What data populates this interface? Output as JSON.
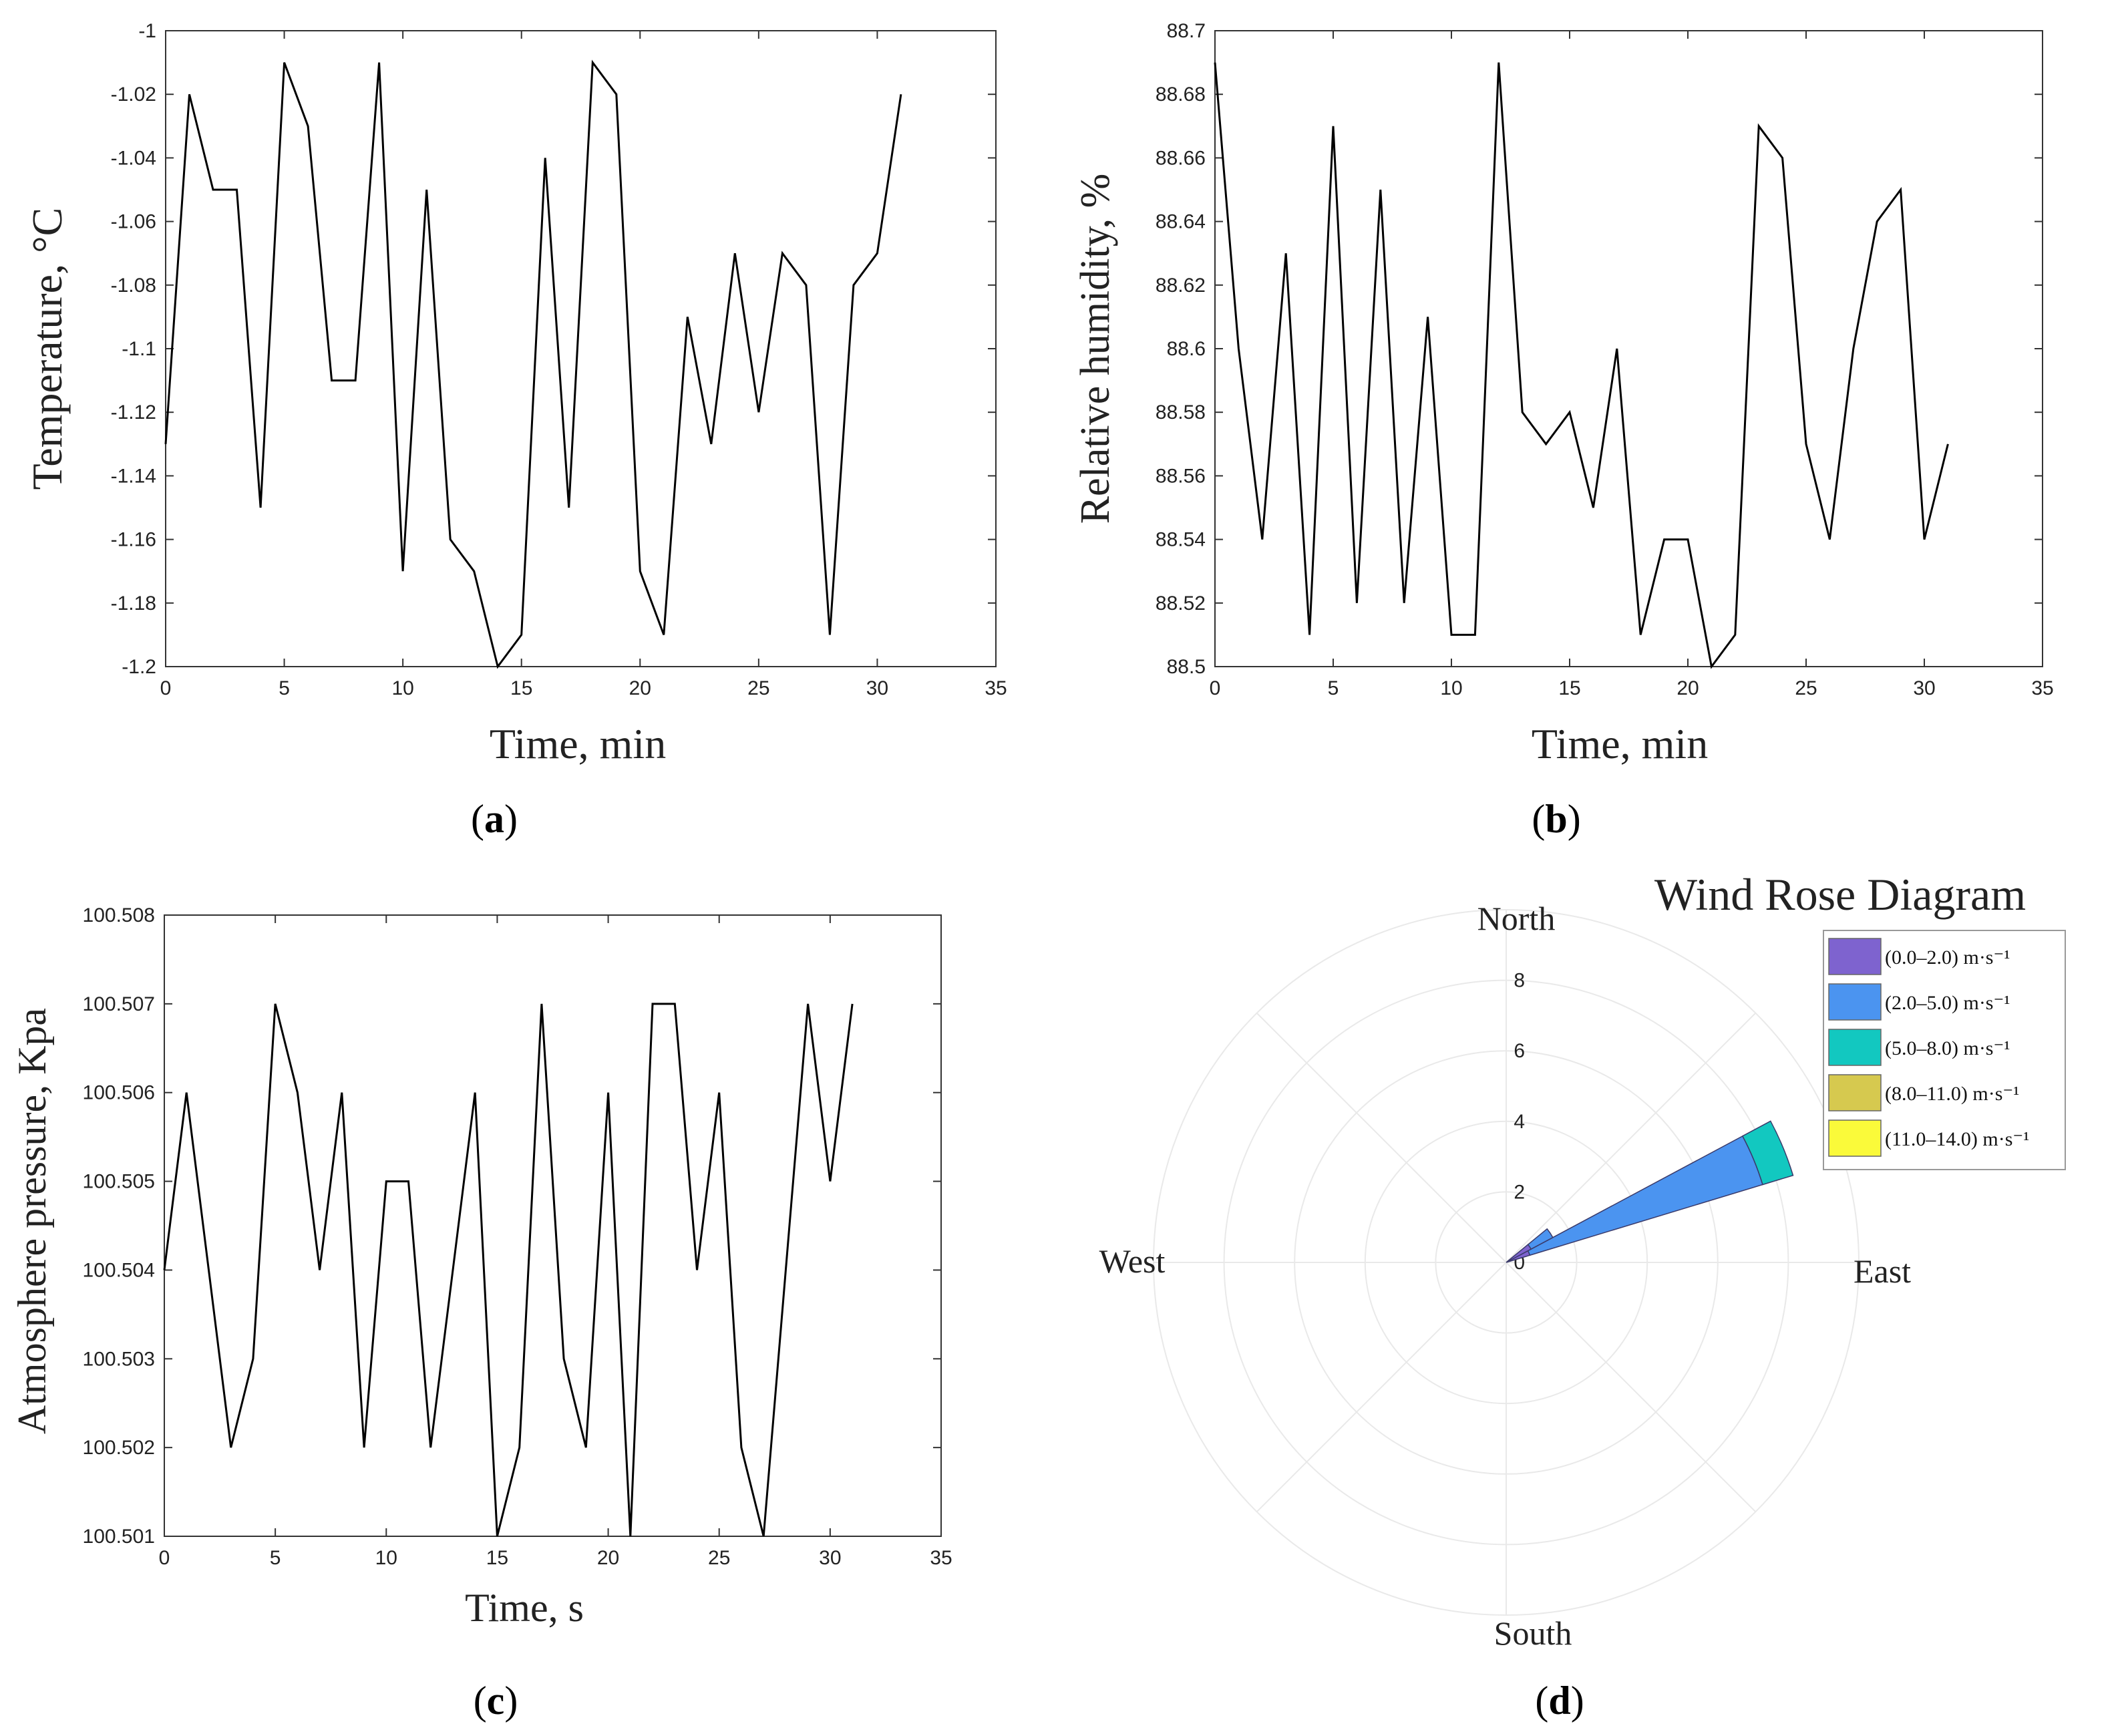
{
  "chart_data": [
    {
      "id": "a",
      "type": "line",
      "panel_label": [
        "(",
        "a",
        ")"
      ],
      "xlabel": "Time, min",
      "ylabel": "Temperature, °C",
      "xlim": [
        0,
        35
      ],
      "ylim": [
        -1.2,
        -1
      ],
      "x_ticks": [
        0,
        5,
        10,
        15,
        20,
        25,
        30,
        35
      ],
      "y_ticks": [
        -1.2,
        -1.18,
        -1.16,
        -1.14,
        -1.12,
        -1.1,
        -1.08,
        -1.06,
        -1.04,
        -1.02,
        -1
      ],
      "y_tick_labels": [
        "-1.2",
        "-1.18",
        "-1.16",
        "-1.14",
        "-1.12",
        "-1.1",
        "-1.08",
        "-1.06",
        "-1.04",
        "-1.02",
        "-1"
      ],
      "x": [
        0,
        1,
        2,
        3,
        4,
        5,
        6,
        7,
        8,
        9,
        10,
        11,
        12,
        13,
        14,
        15,
        16,
        17,
        18,
        19,
        20,
        21,
        22,
        23,
        24,
        25,
        26,
        27,
        28,
        29,
        30,
        31
      ],
      "y": [
        -1.13,
        -1.02,
        -1.05,
        -1.05,
        -1.15,
        -1.01,
        -1.03,
        -1.11,
        -1.11,
        -1.01,
        -1.17,
        -1.05,
        -1.16,
        -1.17,
        -1.2,
        -1.19,
        -1.04,
        -1.15,
        -1.01,
        -1.02,
        -1.17,
        -1.19,
        -1.09,
        -1.13,
        -1.07,
        -1.12,
        -1.07,
        -1.08,
        -1.19,
        -1.08,
        -1.07,
        -1.02
      ],
      "color": "#000000"
    },
    {
      "id": "b",
      "type": "line",
      "panel_label": [
        "(",
        "b",
        ")"
      ],
      "xlabel": "Time, min",
      "ylabel": "Relative humidity, %",
      "xlim": [
        0,
        35
      ],
      "ylim": [
        88.5,
        88.7
      ],
      "x_ticks": [
        0,
        5,
        10,
        15,
        20,
        25,
        30,
        35
      ],
      "y_ticks": [
        88.5,
        88.52,
        88.54,
        88.56,
        88.58,
        88.6,
        88.62,
        88.64,
        88.66,
        88.68,
        88.7
      ],
      "y_tick_labels": [
        "88.5",
        "88.52",
        "88.54",
        "88.56",
        "88.58",
        "88.6",
        "88.62",
        "88.64",
        "88.66",
        "88.68",
        "88.7"
      ],
      "x": [
        0,
        1,
        2,
        3,
        4,
        5,
        6,
        7,
        8,
        9,
        10,
        11,
        12,
        13,
        14,
        15,
        16,
        17,
        18,
        19,
        20,
        21,
        22,
        23,
        24,
        25,
        26,
        27,
        28,
        29,
        30,
        31
      ],
      "y": [
        88.69,
        88.6,
        88.54,
        88.63,
        88.51,
        88.67,
        88.52,
        88.65,
        88.52,
        88.61,
        88.51,
        88.51,
        88.69,
        88.58,
        88.57,
        88.58,
        88.55,
        88.6,
        88.51,
        88.54,
        88.54,
        88.5,
        88.51,
        88.67,
        88.66,
        88.57,
        88.54,
        88.6,
        88.64,
        88.65,
        88.54,
        88.57
      ],
      "color": "#000000"
    },
    {
      "id": "c",
      "type": "line",
      "panel_label": [
        "(",
        "c",
        ")"
      ],
      "xlabel": "Time, s",
      "ylabel": "Atmosphere pressure, Kpa",
      "xlim": [
        0,
        35
      ],
      "ylim": [
        100.501,
        100.508
      ],
      "x_ticks": [
        0,
        5,
        10,
        15,
        20,
        25,
        30,
        35
      ],
      "y_ticks": [
        100.501,
        100.502,
        100.503,
        100.504,
        100.505,
        100.506,
        100.507,
        100.508
      ],
      "y_tick_labels": [
        "100.501",
        "100.502",
        "100.503",
        "100.504",
        "100.505",
        "100.506",
        "100.507",
        "100.508"
      ],
      "x": [
        0,
        1,
        2,
        3,
        4,
        5,
        6,
        7,
        8,
        9,
        10,
        11,
        12,
        13,
        14,
        15,
        16,
        17,
        18,
        19,
        20,
        21,
        22,
        23,
        24,
        25,
        26,
        27,
        28,
        29,
        30,
        31
      ],
      "y": [
        100.504,
        100.506,
        100.504,
        100.502,
        100.503,
        100.507,
        100.506,
        100.504,
        100.506,
        100.502,
        100.505,
        100.505,
        100.502,
        100.504,
        100.506,
        100.501,
        100.502,
        100.507,
        100.503,
        100.502,
        100.506,
        100.501,
        100.507,
        100.507,
        100.504,
        100.506,
        100.502,
        100.501,
        100.504,
        100.507,
        100.505,
        100.507
      ],
      "color": "#000000"
    },
    {
      "id": "d",
      "type": "wind_rose",
      "panel_label": [
        "(",
        "d",
        ")"
      ],
      "title": "Wind Rose Diagram",
      "directions": [
        "North",
        "East",
        "South",
        "West"
      ],
      "r_ticks": [
        0,
        2,
        4,
        6,
        8
      ],
      "r_max": 10,
      "bins": [
        {
          "label": "(0.0–2.0) m·s⁻¹",
          "color": "#7e63cf"
        },
        {
          "label": "(2.0–5.0) m·s⁻¹",
          "color": "#4b94f0"
        },
        {
          "label": "(5.0–8.0) m·s⁻¹",
          "color": "#12c8c0"
        },
        {
          "label": "(8.0–11.0) m·s⁻¹",
          "color": "#d6c94f"
        },
        {
          "label": "(11.0–14.0) m·s⁻¹",
          "color": "#fafa3a"
        }
      ],
      "sectors": [
        {
          "direction_deg": 67.5,
          "width_deg": 11.25,
          "cumulative": [
            0.7,
            7.6,
            8.5,
            8.5,
            8.5
          ]
        },
        {
          "direction_deg": 56.25,
          "width_deg": 11.25,
          "cumulative": [
            0.8,
            1.5,
            1.5,
            1.5,
            1.5
          ]
        }
      ]
    }
  ]
}
